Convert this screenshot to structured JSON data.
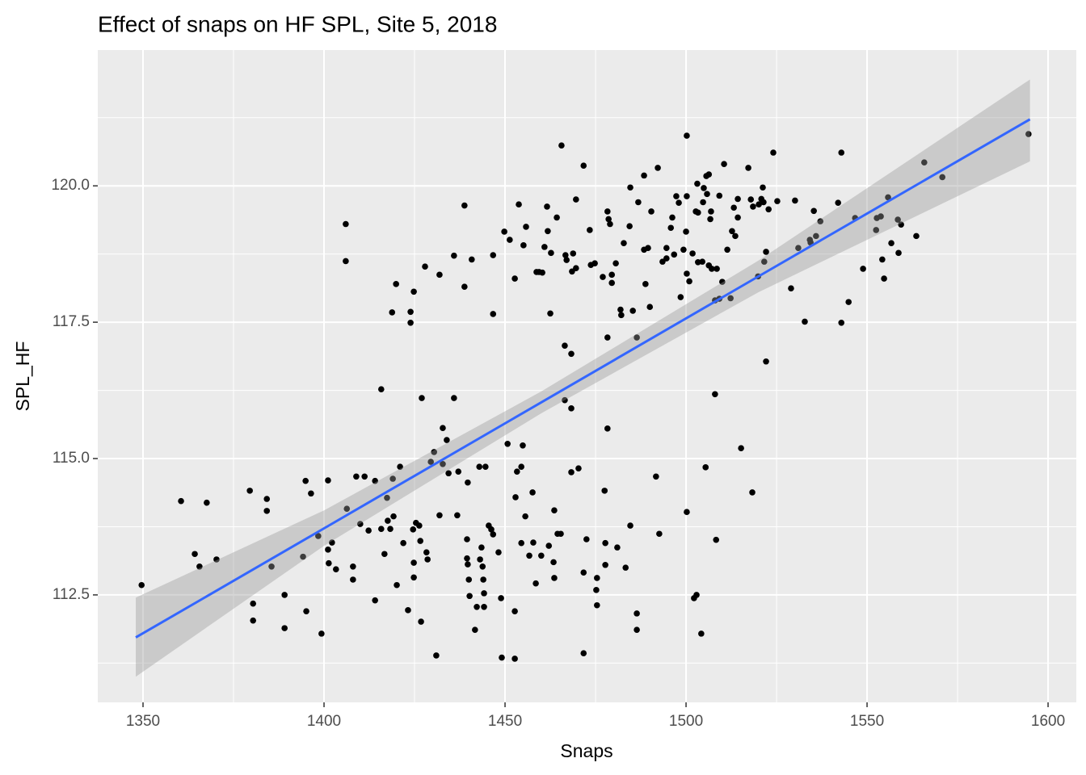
{
  "chart_data": {
    "type": "scatter",
    "title": "Effect of snaps on HF SPL, Site 5, 2018",
    "x_label": "Snaps",
    "y_label": "SPL_HF",
    "xlim": [
      1337.5,
      1607.8
    ],
    "ylim": [
      110.53,
      122.49
    ],
    "xticks": [
      1350,
      1400,
      1450,
      1500,
      1550,
      1600
    ],
    "yticks": [
      112.5,
      {
        "value": 115,
        "label": "115.0"
      },
      117.5,
      {
        "value": 120,
        "label": "120.0"
      }
    ],
    "grid": true,
    "color": "#000000",
    "x": [
      1349.6,
      1360.5,
      1364.3,
      1365.6,
      1367.6,
      1370.3,
      1379.5,
      1380.4,
      1380.4,
      1384.2,
      1384.2,
      1385.5,
      1389.1,
      1389.1,
      1394.2,
      1394.9,
      1395.1,
      1396.4,
      1398.4,
      1399.3,
      1401.1,
      1401.1,
      1401.3,
      1402.2,
      1403.3,
      1406.0,
      1406.0,
      1406.3,
      1408.0,
      1408.0,
      1408.9,
      1410.0,
      1411.2,
      1412.3,
      1414.1,
      1414.1,
      1415.8,
      1415.8,
      1416.7,
      1417.4,
      1417.6,
      1418.3,
      1418.8,
      1419.0,
      1419.2,
      1419.9,
      1420.1,
      1421.0,
      1421.9,
      1423.2,
      1423.9,
      1423.9,
      1424.6,
      1424.8,
      1424.8,
      1424.8,
      1425.4,
      1426.3,
      1426.6,
      1426.8,
      1427.0,
      1427.9,
      1428.3,
      1428.6,
      1429.5,
      1430.4,
      1431.0,
      1431.9,
      1431.9,
      1432.8,
      1432.8,
      1433.9,
      1434.4,
      1435.9,
      1435.9,
      1436.8,
      1437.1,
      1438.8,
      1438.8,
      1439.5,
      1439.5,
      1439.7,
      1439.7,
      1440.0,
      1440.2,
      1440.8,
      1441.7,
      1442.2,
      1442.9,
      1443.1,
      1443.5,
      1443.8,
      1444.0,
      1444.2,
      1444.2,
      1444.6,
      1445.5,
      1446.2,
      1446.7,
      1446.7,
      1446.7,
      1448.2,
      1448.9,
      1449.1,
      1449.8,
      1450.7,
      1451.3,
      1452.7,
      1452.7,
      1452.7,
      1452.9,
      1453.3,
      1453.8,
      1454.5,
      1454.5,
      1454.9,
      1455.1,
      1455.6,
      1455.8,
      1456.7,
      1457.6,
      1457.8,
      1458.5,
      1458.7,
      1459.4,
      1460.0,
      1460.3,
      1460.9,
      1461.6,
      1461.8,
      1462.1,
      1462.5,
      1462.7,
      1463.4,
      1463.6,
      1463.6,
      1464.3,
      1464.5,
      1465.4,
      1465.6,
      1466.5,
      1466.5,
      1466.7,
      1467.0,
      1468.3,
      1468.3,
      1468.3,
      1468.5,
      1468.8,
      1469.6,
      1469.6,
      1470.3,
      1471.7,
      1471.7,
      1471.7,
      1472.5,
      1473.4,
      1473.7,
      1474.8,
      1475.2,
      1475.4,
      1475.4,
      1477.0,
      1477.5,
      1477.7,
      1477.7,
      1478.3,
      1478.3,
      1478.3,
      1478.6,
      1479.0,
      1479.5,
      1479.5,
      1480.6,
      1481.0,
      1481.9,
      1482.1,
      1482.8,
      1483.3,
      1484.4,
      1484.6,
      1484.6,
      1485.3,
      1486.4,
      1486.4,
      1486.4,
      1486.8,
      1488.4,
      1488.4,
      1488.8,
      1489.5,
      1490.0,
      1490.4,
      1491.7,
      1492.2,
      1492.6,
      1493.5,
      1494.6,
      1494.6,
      1495.8,
      1496.2,
      1496.7,
      1497.3,
      1498.0,
      1498.5,
      1499.3,
      1500.0,
      1500.2,
      1500.2,
      1500.2,
      1500.2,
      1500.9,
      1501.8,
      1502.2,
      1502.7,
      1502.9,
      1503.1,
      1503.3,
      1503.3,
      1504.2,
      1504.5,
      1504.7,
      1504.9,
      1505.4,
      1505.6,
      1505.8,
      1506.3,
      1506.3,
      1506.7,
      1506.9,
      1507.1,
      1508.0,
      1508.0,
      1508.3,
      1508.5,
      1509.2,
      1509.2,
      1510.0,
      1510.5,
      1511.4,
      1512.3,
      1512.7,
      1513.2,
      1513.6,
      1514.3,
      1514.3,
      1515.2,
      1517.2,
      1517.9,
      1518.3,
      1518.5,
      1519.9,
      1520.1,
      1520.8,
      1521.2,
      1521.4,
      1521.6,
      1522.1,
      1522.1,
      1522.8,
      1524.1,
      1525.2,
      1529.0,
      1530.1,
      1531.0,
      1532.8,
      1534.2,
      1534.4,
      1535.3,
      1535.9,
      1537.1,
      1542.0,
      1542.9,
      1542.9,
      1544.9,
      1546.7,
      1548.9,
      1552.5,
      1552.7,
      1553.8,
      1554.2,
      1554.7,
      1555.8,
      1556.7,
      1558.5,
      1558.7,
      1559.4,
      1563.6,
      1565.8,
      1570.8,
      1594.6
    ],
    "values": [
      112.68,
      114.22,
      113.25,
      113.02,
      114.19,
      113.15,
      114.41,
      112.34,
      112.03,
      114.26,
      114.04,
      113.02,
      112.5,
      111.89,
      113.2,
      114.59,
      112.2,
      114.36,
      113.58,
      111.79,
      114.6,
      113.33,
      113.08,
      113.46,
      112.97,
      119.3,
      118.62,
      114.08,
      113.02,
      112.78,
      114.67,
      113.8,
      114.67,
      113.68,
      114.59,
      112.4,
      116.27,
      113.71,
      113.25,
      114.28,
      113.86,
      113.71,
      117.68,
      114.63,
      113.94,
      118.2,
      112.68,
      114.85,
      113.45,
      112.22,
      117.69,
      117.49,
      113.7,
      118.06,
      113.09,
      112.82,
      113.82,
      113.77,
      113.49,
      112.01,
      116.11,
      118.52,
      113.28,
      113.15,
      114.94,
      115.12,
      111.39,
      113.96,
      118.37,
      115.56,
      114.9,
      115.34,
      114.73,
      118.72,
      116.11,
      113.96,
      114.76,
      119.64,
      118.15,
      113.52,
      113.17,
      114.56,
      113.06,
      112.78,
      112.48,
      118.65,
      111.86,
      112.28,
      114.85,
      113.15,
      113.37,
      113.02,
      112.78,
      112.28,
      112.53,
      114.85,
      113.77,
      113.7,
      118.73,
      117.65,
      113.61,
      113.28,
      112.44,
      111.35,
      119.16,
      115.27,
      119.01,
      118.3,
      112.2,
      111.33,
      114.29,
      114.76,
      119.66,
      114.85,
      113.45,
      115.24,
      118.91,
      113.94,
      119.25,
      113.22,
      114.38,
      113.46,
      112.71,
      118.42,
      118.42,
      113.22,
      118.41,
      118.88,
      119.62,
      119.17,
      113.4,
      117.66,
      118.77,
      113.1,
      114.05,
      112.81,
      119.42,
      113.62,
      113.62,
      120.74,
      117.07,
      116.07,
      118.73,
      118.64,
      116.92,
      115.92,
      114.75,
      118.43,
      118.76,
      119.75,
      118.49,
      114.82,
      120.37,
      112.91,
      111.43,
      113.52,
      119.19,
      118.55,
      118.58,
      112.59,
      112.81,
      112.31,
      118.33,
      114.41,
      113.45,
      113.05,
      117.22,
      115.55,
      119.53,
      119.39,
      119.3,
      118.37,
      118.22,
      118.58,
      113.37,
      117.73,
      117.63,
      118.95,
      113.0,
      119.26,
      113.77,
      119.97,
      117.71,
      117.22,
      112.16,
      111.86,
      119.7,
      120.19,
      118.83,
      118.2,
      118.86,
      117.78,
      119.53,
      114.67,
      120.33,
      113.62,
      118.61,
      118.67,
      118.86,
      119.23,
      119.42,
      118.74,
      119.81,
      119.69,
      117.96,
      118.83,
      119.16,
      120.92,
      119.81,
      118.39,
      114.02,
      118.25,
      118.76,
      112.44,
      119.53,
      112.5,
      120.04,
      119.51,
      118.6,
      111.79,
      118.61,
      119.7,
      119.96,
      114.84,
      120.18,
      119.85,
      120.21,
      118.54,
      119.39,
      119.53,
      118.48,
      117.9,
      116.18,
      113.51,
      118.48,
      119.82,
      117.93,
      118.24,
      120.4,
      118.83,
      117.94,
      119.17,
      119.6,
      119.08,
      119.76,
      119.42,
      115.19,
      120.33,
      119.75,
      114.38,
      119.62,
      118.34,
      119.66,
      119.76,
      119.97,
      119.7,
      118.61,
      118.79,
      116.78,
      119.57,
      120.61,
      119.72,
      118.12,
      119.73,
      118.86,
      117.51,
      119.01,
      118.96,
      119.54,
      119.08,
      119.35,
      119.69,
      120.61,
      117.49,
      117.87,
      119.41,
      118.48,
      119.19,
      119.41,
      119.44,
      118.65,
      118.3,
      119.79,
      118.95,
      119.38,
      118.77,
      119.29,
      119.08,
      120.43,
      120.16,
      120.95
    ],
    "fit": {
      "color": "#3366ff",
      "band_color": "#999999",
      "x": [
        1348,
        1400,
        1460,
        1520,
        1595
      ],
      "y": [
        111.72,
        113.72,
        116.03,
        118.34,
        121.22
      ],
      "ymin": [
        111.0,
        113.4,
        115.83,
        118.05,
        120.45
      ],
      "ymax": [
        112.45,
        114.05,
        116.23,
        118.63,
        121.95
      ]
    }
  }
}
